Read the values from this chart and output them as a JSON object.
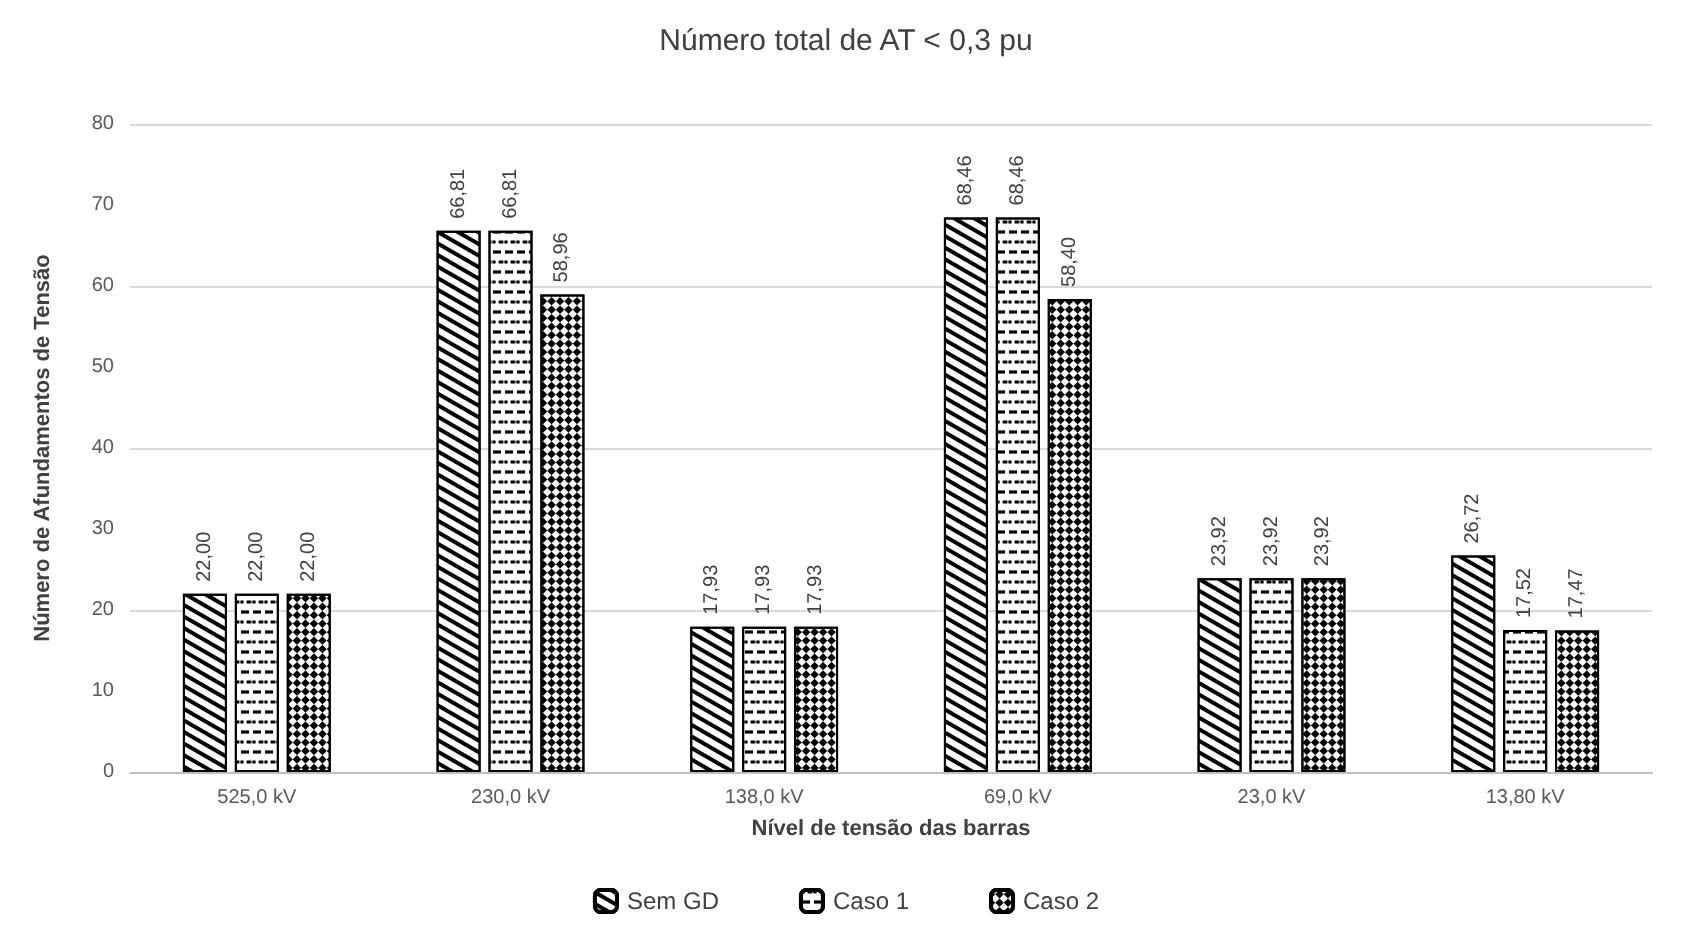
{
  "chart_data": {
    "type": "bar",
    "title": "Número total de AT < 0,3 pu",
    "xlabel": "Nível de tensão das barras",
    "ylabel": "Número de Afundamentos de Tensão",
    "categories": [
      "525,0 kV",
      "230,0 kV",
      "138,0 kV",
      "69,0 kV",
      "23,0 kV",
      "13,80 kV"
    ],
    "series": [
      {
        "name": "Sem GD",
        "color": "#ffffff",
        "values": [
          22.0,
          66.81,
          17.93,
          68.46,
          23.92,
          26.72
        ],
        "value_labels": [
          "22,00",
          "66,81",
          "17,93",
          "68,46",
          "23,92",
          "26,72"
        ]
      },
      {
        "name": "Caso 1",
        "color": "#ffffff",
        "values": [
          22.0,
          66.81,
          17.93,
          68.46,
          23.92,
          17.52
        ],
        "value_labels": [
          "22,00",
          "66,81",
          "17,93",
          "68,46",
          "23,92",
          "17,52"
        ]
      },
      {
        "name": "Caso 2",
        "color": "#ffffff",
        "values": [
          22.0,
          58.96,
          17.93,
          58.4,
          23.92,
          17.47
        ],
        "value_labels": [
          "22,00",
          "58,96",
          "17,93",
          "58,40",
          "23,92",
          "17,47"
        ]
      }
    ],
    "ylim": [
      0,
      80
    ],
    "yticks": [
      0,
      10,
      20,
      30,
      40,
      50,
      60,
      70,
      80
    ],
    "grid": "y",
    "legend": "bottom"
  }
}
